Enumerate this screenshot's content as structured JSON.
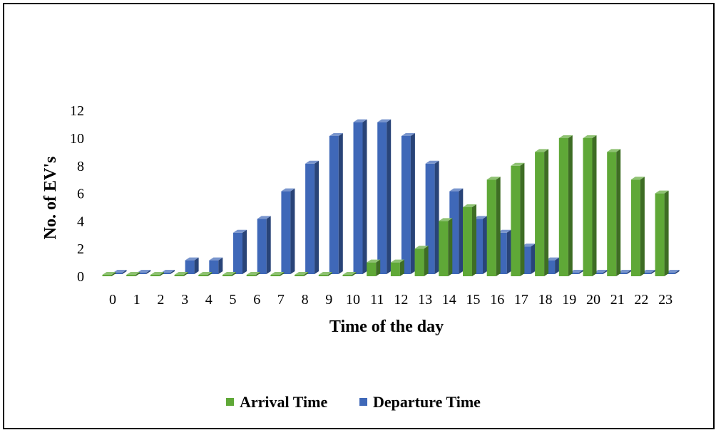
{
  "chart_data": {
    "type": "bar",
    "title": "",
    "xlabel": "Time of the day",
    "ylabel": "No. of EV's",
    "ylim": [
      0,
      12
    ],
    "yticks": [
      0,
      2,
      4,
      6,
      8,
      10,
      12
    ],
    "categories": [
      "0",
      "1",
      "2",
      "3",
      "4",
      "5",
      "6",
      "7",
      "8",
      "9",
      "10",
      "11",
      "12",
      "13",
      "14",
      "15",
      "16",
      "17",
      "18",
      "19",
      "20",
      "21",
      "22",
      "23"
    ],
    "series": [
      {
        "name": "Arrival Time",
        "color": "#5fa837",
        "values": [
          0,
          0,
          0,
          0,
          0,
          0,
          0,
          0,
          0,
          0,
          0,
          1,
          1,
          2,
          4,
          5,
          7,
          8,
          9,
          10,
          10,
          9,
          7,
          6
        ]
      },
      {
        "name": "Departure Time",
        "color": "#3f68b8",
        "values": [
          0,
          0,
          0,
          1,
          1,
          3,
          4,
          6,
          8,
          10,
          11,
          11,
          10,
          8,
          6,
          4,
          3,
          2,
          1,
          0,
          0,
          0,
          0,
          0
        ]
      }
    ],
    "grid": false,
    "legend_position": "bottom",
    "style": "3d-clustered-column"
  }
}
